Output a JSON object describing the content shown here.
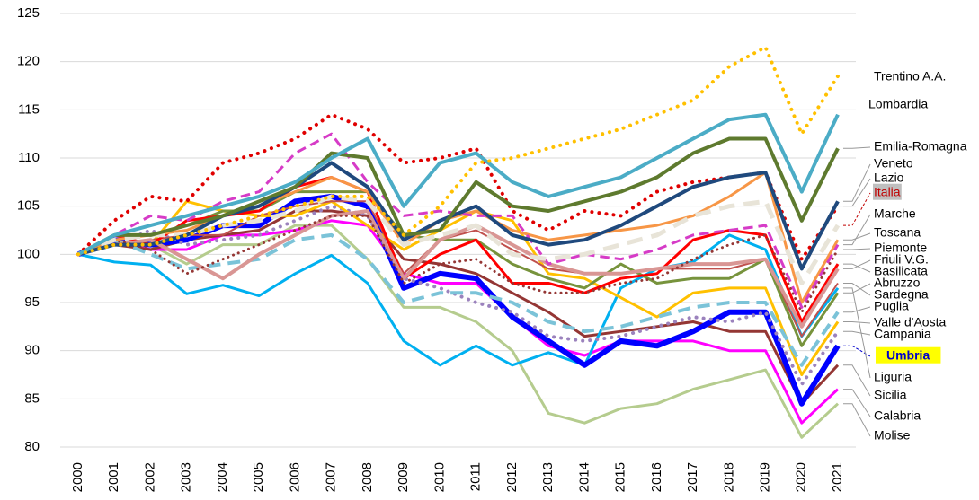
{
  "chart_data": {
    "type": "line",
    "x": [
      2000,
      2001,
      2002,
      2003,
      2004,
      2005,
      2006,
      2007,
      2008,
      2009,
      2010,
      2011,
      2012,
      2013,
      2014,
      2015,
      2016,
      2017,
      2018,
      2019,
      2020,
      2021
    ],
    "ylim": [
      80,
      125
    ],
    "yticks": [
      80,
      85,
      90,
      95,
      100,
      105,
      110,
      115,
      120,
      125
    ],
    "grid": true,
    "series": [
      {
        "name": "Trentino A.A.",
        "color": "#FFC000",
        "dash": "dotted",
        "width": 4,
        "values": [
          100,
          101,
          101,
          102,
          103,
          104,
          105,
          106,
          106,
          102,
          105,
          109.5,
          110,
          111,
          112,
          113,
          114.5,
          116,
          119.5,
          121.5,
          112.5,
          118.5
        ]
      },
      {
        "name": "Lombardia",
        "color": "#4BACC6",
        "dash": "solid",
        "width": 4,
        "values": [
          100,
          102,
          103,
          104,
          105,
          106,
          107.5,
          110,
          112,
          105,
          109.5,
          110.5,
          107.5,
          106,
          107,
          108,
          110,
          112,
          114,
          114.5,
          106.5,
          114.5
        ]
      },
      {
        "name": "Emilia-Romagna",
        "color": "#5E7A2E",
        "dash": "solid",
        "width": 4,
        "values": [
          100,
          102,
          102,
          103,
          104,
          105.5,
          107,
          110.5,
          110,
          102,
          102.5,
          107.5,
          105,
          104.5,
          105.5,
          106.5,
          108,
          110.5,
          112,
          112,
          103.5,
          111
        ]
      },
      {
        "name": "Veneto",
        "color": "#1F497D",
        "dash": "solid",
        "width": 4,
        "values": [
          100,
          101,
          101,
          102,
          104,
          105,
          107,
          109.5,
          107,
          101.5,
          103.5,
          105,
          102,
          101,
          101.5,
          103,
          105,
          107,
          108,
          108.5,
          98.5,
          105.5
        ]
      },
      {
        "name": "Lazio",
        "color": "#E00000",
        "dash": "dotted",
        "width": 4,
        "values": [
          100,
          103.5,
          106,
          105.5,
          109.5,
          110.5,
          112,
          114.5,
          113,
          109.5,
          110,
          111,
          104.5,
          102.5,
          104.5,
          104,
          106.5,
          107.5,
          108,
          108.5,
          99.5,
          105
        ]
      },
      {
        "name": "Italia",
        "color": "#E8E4D8",
        "dash": "dashed",
        "width": 5,
        "label_color": "#C00000",
        "label_background": "#BFBFBF",
        "values": [
          100,
          101.5,
          102,
          102,
          103,
          103.5,
          104.5,
          106,
          105.5,
          101,
          102,
          103,
          100,
          99.5,
          100,
          101,
          102,
          104,
          105,
          105.5,
          97,
          103
        ]
      },
      {
        "name": "Marche",
        "color": "#D63BC7",
        "dash": "dashed",
        "width": 3,
        "values": [
          100,
          102,
          104,
          103.5,
          105.5,
          106.5,
          110.5,
          112.5,
          107.5,
          104,
          104.5,
          104,
          104,
          99,
          100,
          99.5,
          100.5,
          102,
          102.5,
          103,
          94.5,
          101
        ]
      },
      {
        "name": "Toscana",
        "color": "#F79646",
        "dash": "solid",
        "width": 3,
        "values": [
          100,
          101.5,
          102,
          102.5,
          104,
          105,
          106.5,
          108,
          106.5,
          101,
          103.5,
          104.5,
          102.5,
          101.5,
          102,
          102.5,
          103,
          104,
          106,
          108.5,
          95,
          101.5
        ]
      },
      {
        "name": "Piemonte",
        "color": "#953735",
        "dash": "dotted",
        "width": 3,
        "values": [
          100,
          101.5,
          100.5,
          98,
          99.5,
          101,
          102.5,
          104,
          104,
          97,
          99,
          99.5,
          97,
          96,
          96,
          97,
          97.5,
          99.5,
          101,
          102,
          94,
          100.5
        ]
      },
      {
        "name": "Friuli V.G.",
        "color": "#D99694",
        "dash": "solid",
        "width": 4,
        "values": [
          100,
          101,
          101.5,
          99.5,
          97.5,
          100,
          102,
          104,
          104.5,
          97.5,
          101.5,
          103,
          101,
          99,
          98,
          98,
          98.5,
          99,
          99,
          99.5,
          92.5,
          98.5
        ]
      },
      {
        "name": "Basilicata",
        "color": "#FF0000",
        "dash": "solid",
        "width": 3,
        "values": [
          100,
          102,
          101,
          103.5,
          104,
          104.5,
          107,
          108,
          106.5,
          97.5,
          100,
          101.5,
          97,
          97,
          96,
          97.5,
          98,
          101.5,
          102.5,
          102,
          93,
          99
        ]
      },
      {
        "name": "Abruzzo",
        "color": "#77933C",
        "dash": "solid",
        "width": 3,
        "values": [
          100,
          102,
          102,
          103,
          104.5,
          104.5,
          106.5,
          106.5,
          106.5,
          102,
          101.5,
          101.5,
          99,
          97.5,
          96.5,
          99,
          97,
          97.5,
          97.5,
          99.5,
          90.5,
          96
        ]
      },
      {
        "name": "Sardegna",
        "color": "#C0504D",
        "dash": "solid",
        "width": 2,
        "values": [
          100,
          101,
          101.5,
          102,
          102,
          104,
          105,
          105.5,
          105.5,
          98,
          101.5,
          102.5,
          100.5,
          98.5,
          98,
          98,
          98.5,
          98.5,
          98.5,
          99.5,
          91.5,
          97
        ]
      },
      {
        "name": "Puglia",
        "color": "#7BC3D8",
        "dash": "dashed",
        "width": 4,
        "values": [
          100,
          101.5,
          100,
          98.5,
          99,
          99.5,
          101.5,
          102,
          99.5,
          95,
          96,
          96,
          95,
          93,
          92,
          92.5,
          93.5,
          94.5,
          95,
          95,
          88.5,
          94
        ]
      },
      {
        "name": "Valle d'Aosta",
        "color": "#FFC000",
        "dash": "solid",
        "width": 3,
        "values": [
          100,
          101,
          101,
          105.5,
          104.5,
          104,
          104,
          105.5,
          103,
          100.5,
          102.5,
          104.5,
          103.5,
          98,
          97.5,
          95.5,
          93.5,
          96,
          96.5,
          96.5,
          87.5,
          93
        ]
      },
      {
        "name": "Campania",
        "color": "#9B82BD",
        "dash": "dotted",
        "width": 4,
        "values": [
          100,
          101,
          102.5,
          101,
          101.5,
          102,
          103.5,
          105,
          104,
          97.5,
          96.5,
          95,
          94,
          91.5,
          91,
          91.5,
          92.5,
          93.5,
          93,
          94,
          86.5,
          92
        ]
      },
      {
        "name": "Umbria",
        "color": "#0000FF",
        "dash": "solid",
        "width": 6,
        "label_color": "#0000CC",
        "label_background": "#FFFF00",
        "values": [
          100,
          101.5,
          101,
          101.5,
          103,
          103,
          105.5,
          106,
          105,
          96.5,
          98,
          97.5,
          93.5,
          91,
          88.5,
          91,
          90.5,
          92,
          94,
          94,
          84.5,
          90.5
        ]
      },
      {
        "name": "Liguria",
        "color": "#00B0F0",
        "dash": "solid",
        "width": 3,
        "values": [
          100,
          99.2,
          98.9,
          95.9,
          96.8,
          95.7,
          98,
          99.9,
          97,
          91,
          88.5,
          90.5,
          88.5,
          89.8,
          88.5,
          96.5,
          98.5,
          99.2,
          102,
          100.5,
          91.5,
          96.5
        ]
      },
      {
        "name": "Sicilia",
        "color": "#943634",
        "dash": "solid",
        "width": 3,
        "values": [
          100,
          101,
          100.5,
          101.5,
          102,
          102.5,
          104.5,
          104.5,
          104,
          99.5,
          99,
          98,
          96,
          94,
          91.5,
          92,
          92.5,
          93,
          92,
          92,
          84.5,
          88.5
        ]
      },
      {
        "name": "Calabria",
        "color": "#FF00FF",
        "dash": "solid",
        "width": 3,
        "values": [
          100,
          101.5,
          100.5,
          100.5,
          102,
          102,
          102.5,
          103.5,
          103,
          98,
          97,
          97,
          93.5,
          90.5,
          89.5,
          91,
          91,
          91,
          90,
          90,
          82.5,
          86
        ]
      },
      {
        "name": "Molise",
        "color": "#B5CC8E",
        "dash": "solid",
        "width": 3,
        "values": [
          100,
          101.5,
          101,
          99,
          101,
          101,
          103,
          103,
          99.5,
          94.5,
          94.5,
          93,
          90,
          83.5,
          82.5,
          84,
          84.5,
          86,
          87,
          88,
          81,
          84.5
        ]
      }
    ]
  }
}
